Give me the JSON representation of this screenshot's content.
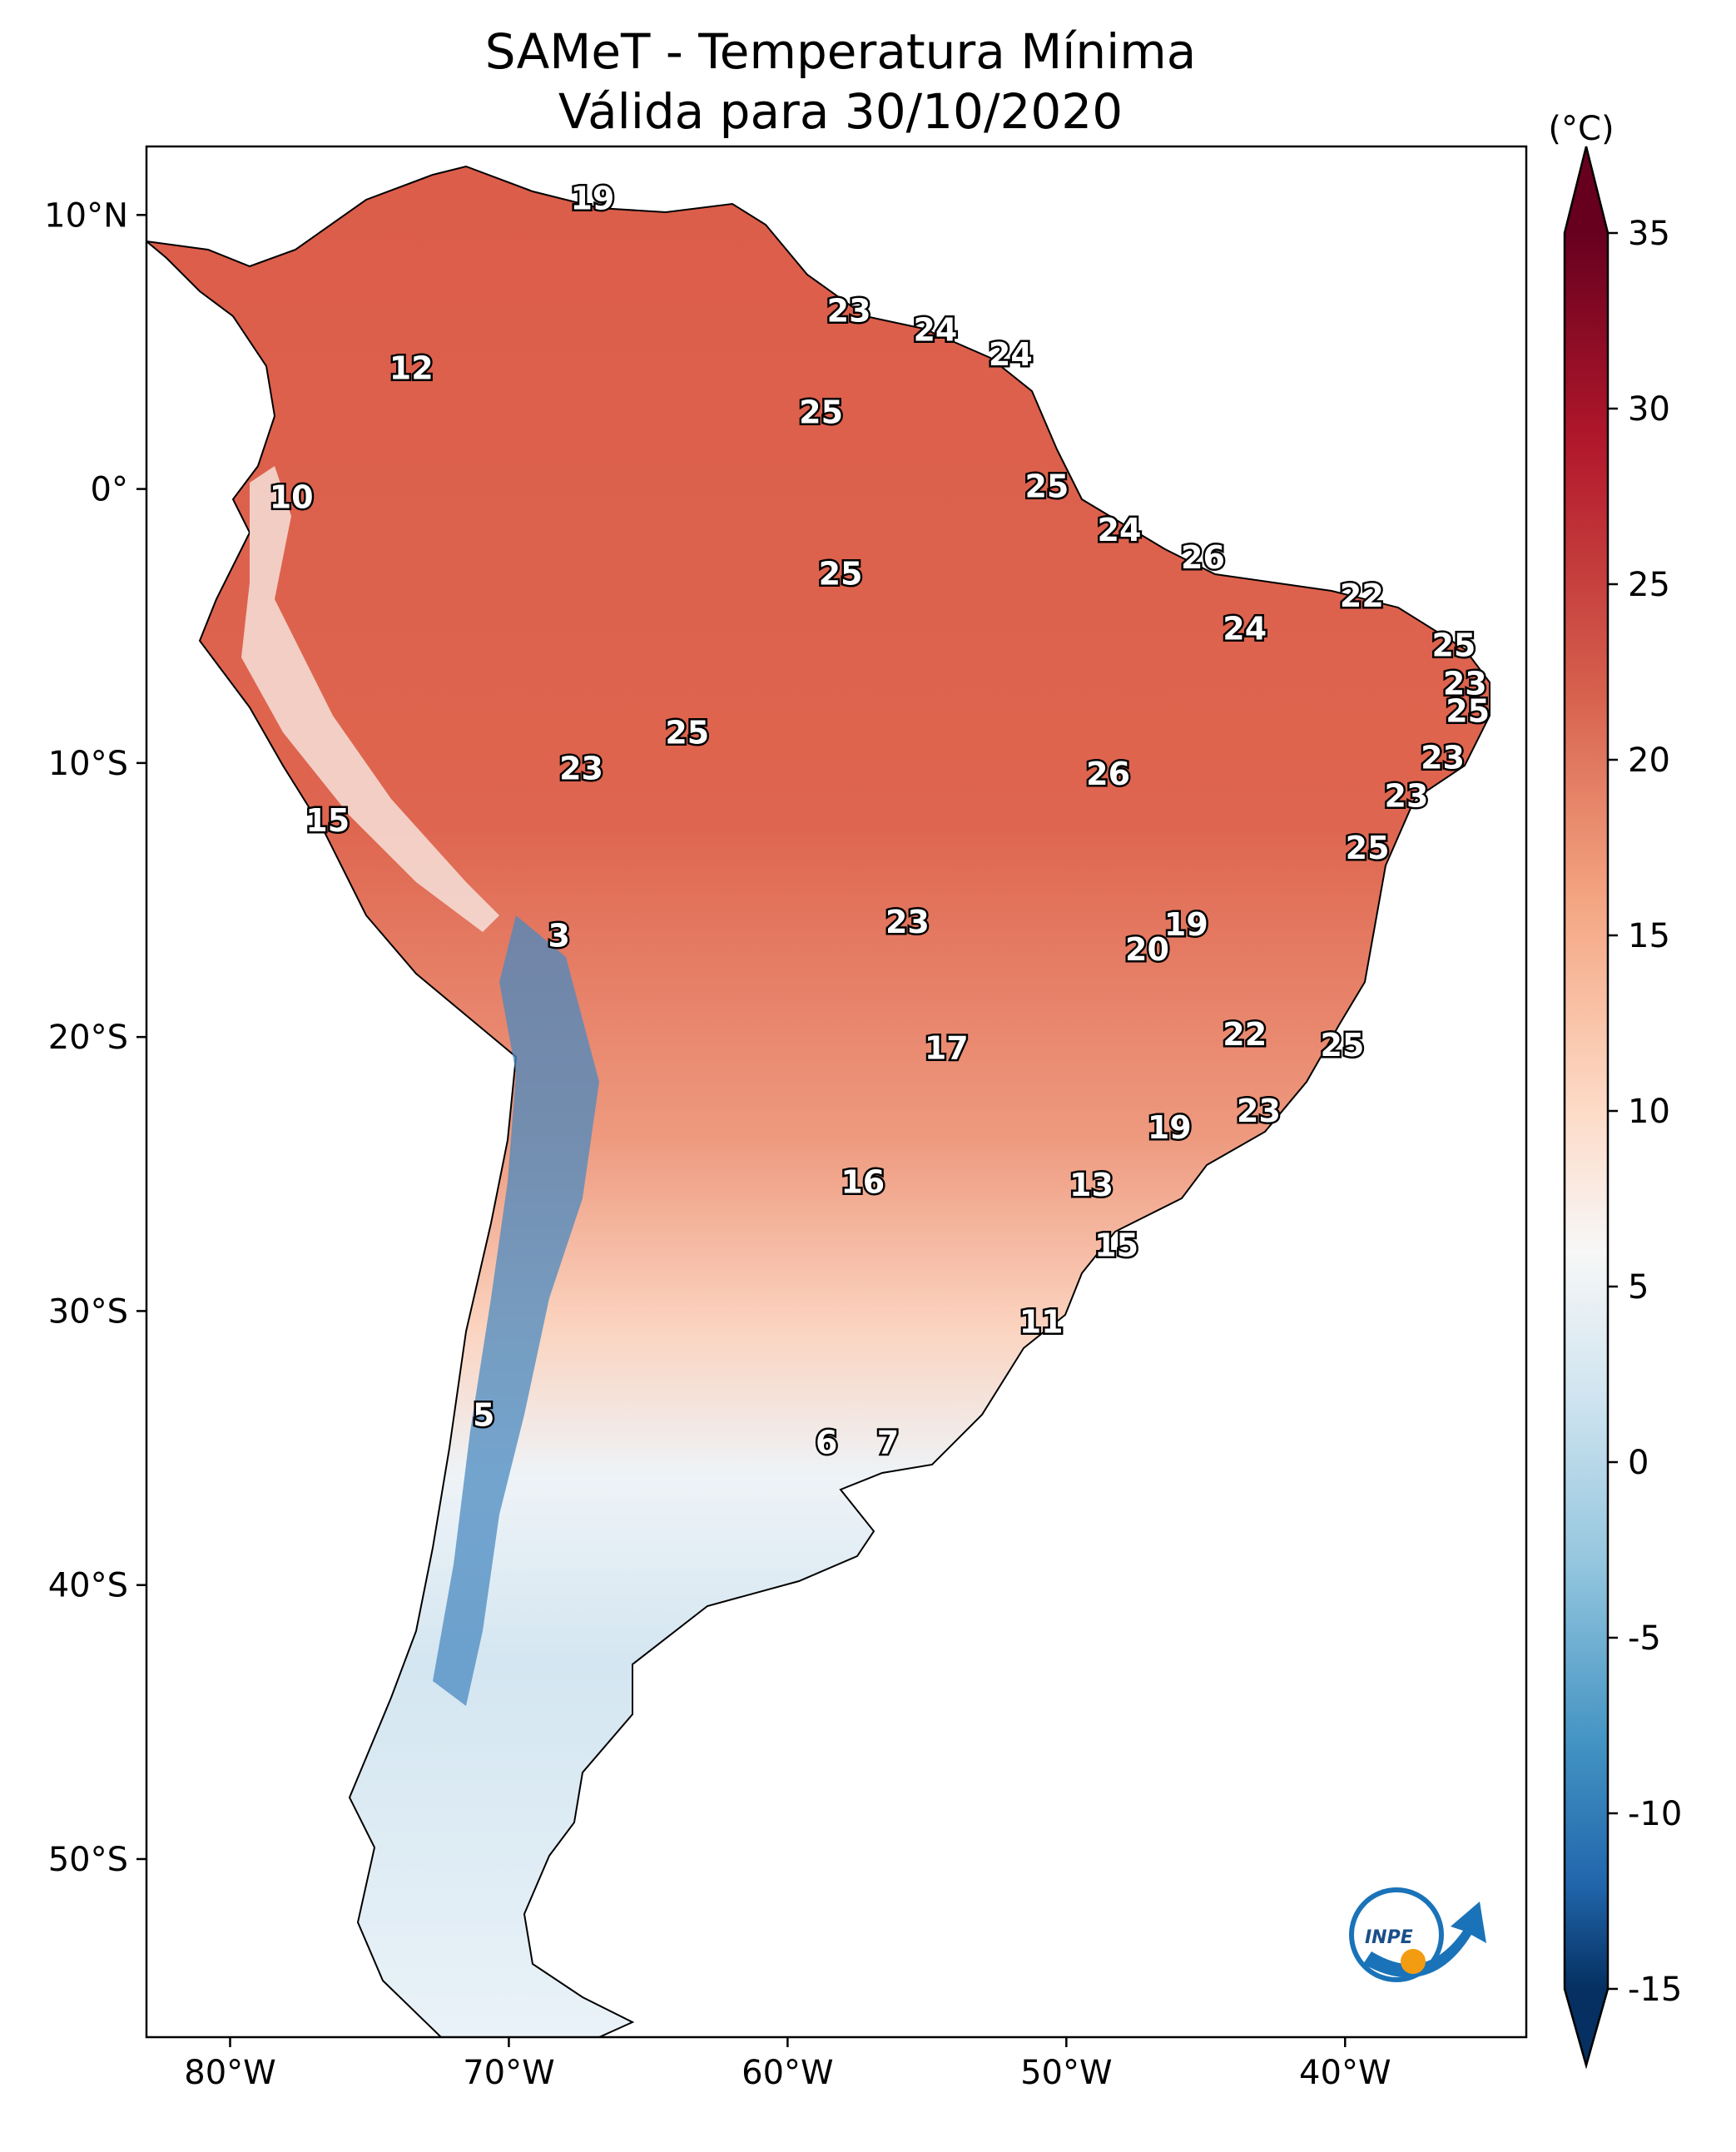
{
  "title": "SAMeT - Temperatura Mínima",
  "subtitle": "Válida para 30/10/2020",
  "colorbar": {
    "unit": "(°C)",
    "ticks": [
      "35",
      "30",
      "25",
      "20",
      "15",
      "10",
      "5",
      "0",
      "-5",
      "-10",
      "-15"
    ],
    "range": [
      -15,
      35
    ]
  },
  "axes": {
    "lat_ticks": [
      "10°N",
      "0°",
      "10°S",
      "20°S",
      "30°S",
      "40°S",
      "50°S"
    ],
    "lon_ticks": [
      "80°W",
      "70°W",
      "60°W",
      "50°W",
      "40°W"
    ],
    "lon_range": [
      -83,
      -33.5
    ],
    "lat_range": [
      -56.5,
      12.5
    ]
  },
  "labels": [
    {
      "text": "19",
      "lon": -67,
      "lat": 10.6
    },
    {
      "text": "12",
      "lon": -73.5,
      "lat": 4.4
    },
    {
      "text": "10",
      "lon": -77.8,
      "lat": -0.3
    },
    {
      "text": "23",
      "lon": -57.8,
      "lat": 6.5
    },
    {
      "text": "24",
      "lon": -54.7,
      "lat": 5.8
    },
    {
      "text": "24",
      "lon": -52,
      "lat": 4.9
    },
    {
      "text": "25",
      "lon": -58.8,
      "lat": 2.8
    },
    {
      "text": "25",
      "lon": -50.7,
      "lat": 0.1
    },
    {
      "text": "24",
      "lon": -48.1,
      "lat": -1.5
    },
    {
      "text": "26",
      "lon": -45.1,
      "lat": -2.5
    },
    {
      "text": "22",
      "lon": -39.4,
      "lat": -3.9
    },
    {
      "text": "24",
      "lon": -43.6,
      "lat": -5.1
    },
    {
      "text": "25",
      "lon": -58.1,
      "lat": -3.1
    },
    {
      "text": "25",
      "lon": -36.1,
      "lat": -5.7
    },
    {
      "text": "23",
      "lon": -35.7,
      "lat": -7.1
    },
    {
      "text": "25",
      "lon": -35.6,
      "lat": -8.1
    },
    {
      "text": "25",
      "lon": -63.6,
      "lat": -8.9
    },
    {
      "text": "23",
      "lon": -67.4,
      "lat": -10.2
    },
    {
      "text": "26",
      "lon": -48.5,
      "lat": -10.4
    },
    {
      "text": "23",
      "lon": -36.5,
      "lat": -9.8
    },
    {
      "text": "23",
      "lon": -37.8,
      "lat": -11.2
    },
    {
      "text": "25",
      "lon": -39.2,
      "lat": -13.1
    },
    {
      "text": "15",
      "lon": -76.5,
      "lat": -12.1
    },
    {
      "text": "3",
      "lon": -68.2,
      "lat": -16.3
    },
    {
      "text": "23",
      "lon": -55.7,
      "lat": -15.8
    },
    {
      "text": "19",
      "lon": -45.7,
      "lat": -15.9
    },
    {
      "text": "20",
      "lon": -47.1,
      "lat": -16.8
    },
    {
      "text": "17",
      "lon": -54.3,
      "lat": -20.4
    },
    {
      "text": "22",
      "lon": -43.6,
      "lat": -19.9
    },
    {
      "text": "25",
      "lon": -40.1,
      "lat": -20.3
    },
    {
      "text": "23",
      "lon": -43.1,
      "lat": -22.7
    },
    {
      "text": "19",
      "lon": -46.3,
      "lat": -23.3
    },
    {
      "text": "16",
      "lon": -57.3,
      "lat": -25.3
    },
    {
      "text": "13",
      "lon": -49.1,
      "lat": -25.4
    },
    {
      "text": "15",
      "lon": -48.2,
      "lat": -27.6
    },
    {
      "text": "11",
      "lon": -50.9,
      "lat": -30.4
    },
    {
      "text": "5",
      "lon": -70.9,
      "lat": -33.8
    },
    {
      "text": "6",
      "lon": -58.6,
      "lat": -34.8
    },
    {
      "text": "7",
      "lon": -56.4,
      "lat": -34.8
    }
  ],
  "logo": {
    "text": "INPE"
  }
}
